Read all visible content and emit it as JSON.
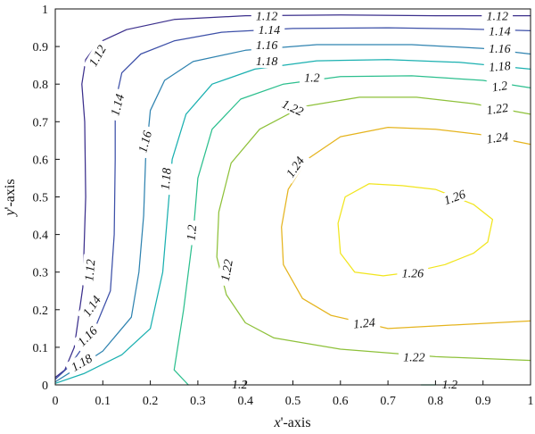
{
  "chart_data": {
    "type": "contour",
    "title": "",
    "xlabel_italic": "x",
    "xlabel_rest": "'-axis",
    "ylabel_italic": "y",
    "ylabel_rest": "'-axis",
    "xlim": [
      0,
      1
    ],
    "ylim": [
      0,
      1
    ],
    "xticks": [
      "0",
      "0.1",
      "0.2",
      "0.3",
      "0.4",
      "0.5",
      "0.6",
      "0.7",
      "0.8",
      "0.9",
      "1"
    ],
    "yticks": [
      "0",
      "0.1",
      "0.2",
      "0.3",
      "0.4",
      "0.5",
      "0.6",
      "0.7",
      "0.8",
      "0.9",
      "1"
    ],
    "grid": false,
    "levels": [
      {
        "value": "1.12",
        "color": "#3b2f8c",
        "lines": [
          [
            [
              0.0,
              0.02
            ],
            [
              0.02,
              0.04
            ],
            [
              0.04,
              0.1
            ],
            [
              0.058,
              0.26
            ],
            [
              0.064,
              0.5
            ],
            [
              0.062,
              0.7
            ],
            [
              0.056,
              0.8
            ],
            [
              0.064,
              0.865
            ],
            [
              0.09,
              0.91
            ],
            [
              0.15,
              0.945
            ],
            [
              0.25,
              0.972
            ],
            [
              0.4,
              0.982
            ],
            [
              0.6,
              0.984
            ],
            [
              0.8,
              0.982
            ],
            [
              1.0,
              0.982
            ]
          ]
        ],
        "labels": [
          [
            0.088,
            0.876,
            -60
          ],
          [
            0.445,
            0.982,
            0
          ],
          [
            0.93,
            0.982,
            0
          ],
          [
            0.072,
            0.305,
            -85
          ]
        ]
      },
      {
        "value": "1.14",
        "color": "#3d50a8",
        "lines": [
          [
            [
              0.0,
              0.015
            ],
            [
              0.03,
              0.05
            ],
            [
              0.08,
              0.14
            ],
            [
              0.116,
              0.25
            ],
            [
              0.124,
              0.4
            ],
            [
              0.126,
              0.6
            ],
            [
              0.126,
              0.75
            ],
            [
              0.14,
              0.83
            ],
            [
              0.18,
              0.88
            ],
            [
              0.25,
              0.915
            ],
            [
              0.35,
              0.938
            ],
            [
              0.5,
              0.948
            ],
            [
              0.7,
              0.95
            ],
            [
              0.85,
              0.947
            ],
            [
              1.0,
              0.942
            ]
          ]
        ],
        "labels": [
          [
            0.13,
            0.745,
            -75
          ],
          [
            0.45,
            0.945,
            0
          ],
          [
            0.935,
            0.942,
            0
          ],
          [
            0.076,
            0.21,
            -55
          ]
        ]
      },
      {
        "value": "1.16",
        "color": "#2f83b0",
        "lines": [
          [
            [
              0.0,
              0.008
            ],
            [
              0.04,
              0.04
            ],
            [
              0.1,
              0.09
            ],
            [
              0.16,
              0.18
            ],
            [
              0.176,
              0.3
            ],
            [
              0.186,
              0.45
            ],
            [
              0.19,
              0.6
            ],
            [
              0.2,
              0.73
            ],
            [
              0.23,
              0.81
            ],
            [
              0.29,
              0.86
            ],
            [
              0.4,
              0.89
            ],
            [
              0.55,
              0.905
            ],
            [
              0.75,
              0.905
            ],
            [
              0.9,
              0.895
            ],
            [
              1.0,
              0.88
            ]
          ]
        ],
        "labels": [
          [
            0.188,
            0.647,
            -75
          ],
          [
            0.445,
            0.905,
            0
          ],
          [
            0.935,
            0.895,
            0
          ],
          [
            0.067,
            0.13,
            -45
          ]
        ]
      },
      {
        "value": "1.18",
        "color": "#1ab0b0",
        "lines": [
          [
            [
              0.0,
              0.004
            ],
            [
              0.06,
              0.03
            ],
            [
              0.14,
              0.08
            ],
            [
              0.2,
              0.15
            ],
            [
              0.226,
              0.3
            ],
            [
              0.236,
              0.45
            ],
            [
              0.246,
              0.6
            ],
            [
              0.275,
              0.72
            ],
            [
              0.33,
              0.8
            ],
            [
              0.42,
              0.84
            ],
            [
              0.55,
              0.862
            ],
            [
              0.7,
              0.865
            ],
            [
              0.85,
              0.858
            ],
            [
              1.0,
              0.84
            ]
          ]
        ],
        "labels": [
          [
            0.232,
            0.548,
            -85
          ],
          [
            0.445,
            0.862,
            0
          ],
          [
            0.935,
            0.848,
            -5
          ],
          [
            0.055,
            0.06,
            -30
          ]
        ]
      },
      {
        "value": "1.2",
        "color": "#2cbf8e",
        "lines": [
          [
            [
              0.28,
              0.0
            ],
            [
              0.25,
              0.04
            ],
            [
              0.27,
              0.2
            ],
            [
              0.29,
              0.4
            ],
            [
              0.3,
              0.55
            ],
            [
              0.33,
              0.68
            ],
            [
              0.39,
              0.76
            ],
            [
              0.48,
              0.8
            ],
            [
              0.6,
              0.82
            ],
            [
              0.75,
              0.822
            ],
            [
              0.9,
              0.81
            ],
            [
              1.0,
              0.79
            ]
          ],
          [
            [
              0.77,
              0.0
            ],
            [
              0.8,
              0.0
            ]
          ]
        ],
        "labels": [
          [
            0.286,
            0.405,
            -85
          ],
          [
            0.54,
            0.818,
            0
          ],
          [
            0.935,
            0.795,
            -8
          ],
          [
            0.388,
            0.002,
            0
          ],
          [
            0.83,
            0.002,
            0
          ]
        ]
      },
      {
        "value": "1.22",
        "color": "#8ec13a",
        "lines": [
          [
            [
              1.0,
              0.065
            ],
            [
              0.8,
              0.075
            ],
            [
              0.6,
              0.095
            ],
            [
              0.46,
              0.125
            ],
            [
              0.4,
              0.165
            ],
            [
              0.36,
              0.24
            ],
            [
              0.34,
              0.34
            ],
            [
              0.344,
              0.46
            ],
            [
              0.37,
              0.59
            ],
            [
              0.43,
              0.68
            ],
            [
              0.52,
              0.74
            ],
            [
              0.64,
              0.765
            ],
            [
              0.76,
              0.765
            ],
            [
              0.88,
              0.748
            ],
            [
              1.0,
              0.72
            ]
          ]
        ],
        "labels": [
          [
            0.36,
            0.305,
            -80
          ],
          [
            0.5,
            0.738,
            25
          ],
          [
            0.93,
            0.735,
            -8
          ],
          [
            0.755,
            0.075,
            0
          ]
        ]
      },
      {
        "value": "1.24",
        "color": "#e5b41e",
        "lines": [
          [
            [
              1.0,
              0.17
            ],
            [
              0.85,
              0.16
            ],
            [
              0.7,
              0.15
            ],
            [
              0.58,
              0.185
            ],
            [
              0.52,
              0.23
            ],
            [
              0.48,
              0.32
            ],
            [
              0.476,
              0.42
            ],
            [
              0.49,
              0.52
            ],
            [
              0.53,
              0.6
            ],
            [
              0.6,
              0.66
            ],
            [
              0.7,
              0.685
            ],
            [
              0.8,
              0.68
            ],
            [
              0.9,
              0.665
            ],
            [
              1.0,
              0.64
            ]
          ]
        ],
        "labels": [
          [
            0.504,
            0.58,
            -55
          ],
          [
            0.65,
            0.165,
            -5
          ],
          [
            0.93,
            0.658,
            -8
          ]
        ]
      },
      {
        "value": "1.26",
        "color": "#f1e51d",
        "lines": [
          [
            [
              0.63,
              0.3
            ],
            [
              0.6,
              0.35
            ],
            [
              0.595,
              0.43
            ],
            [
              0.61,
              0.5
            ],
            [
              0.66,
              0.535
            ],
            [
              0.73,
              0.53
            ],
            [
              0.8,
              0.52
            ],
            [
              0.88,
              0.48
            ],
            [
              0.92,
              0.44
            ],
            [
              0.91,
              0.38
            ],
            [
              0.88,
              0.35
            ],
            [
              0.82,
              0.32
            ],
            [
              0.75,
              0.3
            ],
            [
              0.69,
              0.29
            ],
            [
              0.63,
              0.3
            ]
          ]
        ],
        "labels": [
          [
            0.84,
            0.5,
            -20
          ],
          [
            0.752,
            0.298,
            0
          ]
        ]
      }
    ]
  }
}
